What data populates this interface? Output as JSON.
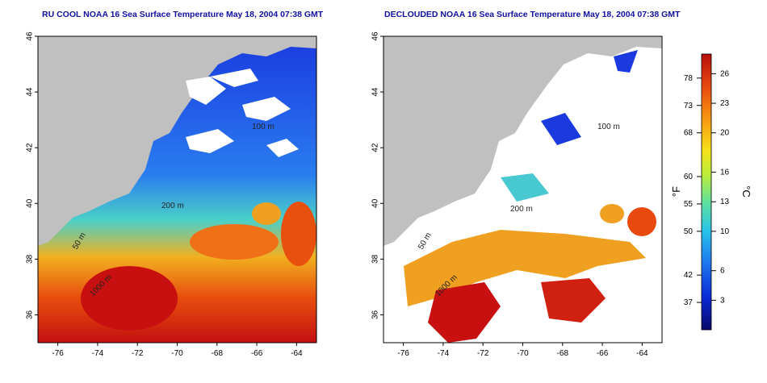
{
  "panels": [
    {
      "title": "RU COOL NOAA 16 Sea Surface Temperature May 18, 2004 07:38 GMT"
    },
    {
      "title": "DECLOUDED NOAA 16 Sea Surface Temperature May 18, 2004 07:38 GMT"
    }
  ],
  "axes": {
    "lon_ticks": [
      "-76",
      "-74",
      "-72",
      "-70",
      "-68",
      "-66",
      "-64"
    ],
    "lat_ticks": [
      "36",
      "38",
      "40",
      "42",
      "44",
      "46"
    ]
  },
  "contour_labels": [
    "100 m",
    "200 m",
    "50 m",
    "1000 m"
  ],
  "colorbar": {
    "fahrenheit_unit": "°F",
    "celsius_unit": "°C",
    "fahrenheit_ticks": [
      "78",
      "73",
      "68",
      "60",
      "55",
      "50",
      "42",
      "37"
    ],
    "celsius_ticks": [
      "26",
      "23",
      "20",
      "16",
      "13",
      "10",
      "6",
      "3"
    ],
    "colors": [
      "#08086a",
      "#0a2bd8",
      "#1e7cf0",
      "#29c4e8",
      "#5ee0a0",
      "#b8ee3a",
      "#f6e21a",
      "#f89a12",
      "#e84a0e",
      "#b80e0e"
    ]
  },
  "colors": {
    "land": "#c0c0c0",
    "cloud": "#ffffff",
    "title": "#1010a0"
  }
}
